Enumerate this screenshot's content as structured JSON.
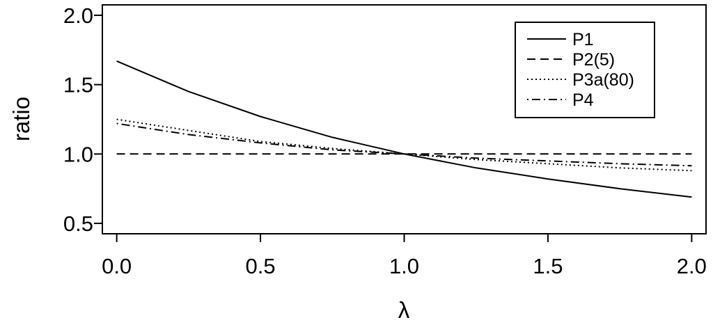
{
  "chart_data": {
    "type": "line",
    "title": "",
    "xlabel": "λ",
    "ylabel": "ratio",
    "xlim": [
      -0.05,
      2.05
    ],
    "ylim": [
      0.5,
      2.0
    ],
    "xticks": [
      0.0,
      0.5,
      1.0,
      1.5,
      2.0
    ],
    "xtick_labels": [
      "0.0",
      "0.5",
      "1.0",
      "1.5",
      "2.0"
    ],
    "yticks": [
      0.5,
      1.0,
      1.5,
      2.0
    ],
    "ytick_labels": [
      "0.5",
      "1.0",
      "1.5",
      "2.0"
    ],
    "grid": false,
    "legend_position": "top-right",
    "x": [
      0.0,
      0.25,
      0.5,
      0.75,
      1.0,
      1.25,
      1.5,
      1.75,
      2.0
    ],
    "series": [
      {
        "name": "P1",
        "line_style": "solid",
        "values": [
          1.67,
          1.45,
          1.27,
          1.12,
          1.0,
          0.9,
          0.82,
          0.75,
          0.69
        ]
      },
      {
        "name": "P2(5)",
        "line_style": "dashed",
        "values": [
          1.0,
          1.0,
          1.0,
          1.0,
          1.0,
          1.0,
          1.0,
          1.0,
          1.0
        ]
      },
      {
        "name": "P3a(80)",
        "line_style": "dotted",
        "values": [
          1.25,
          1.17,
          1.09,
          1.04,
          1.0,
          0.96,
          0.93,
          0.9,
          0.88
        ]
      },
      {
        "name": "P4",
        "line_style": "dotdash",
        "values": [
          1.22,
          1.14,
          1.08,
          1.03,
          1.0,
          0.97,
          0.95,
          0.93,
          0.915
        ]
      }
    ]
  }
}
